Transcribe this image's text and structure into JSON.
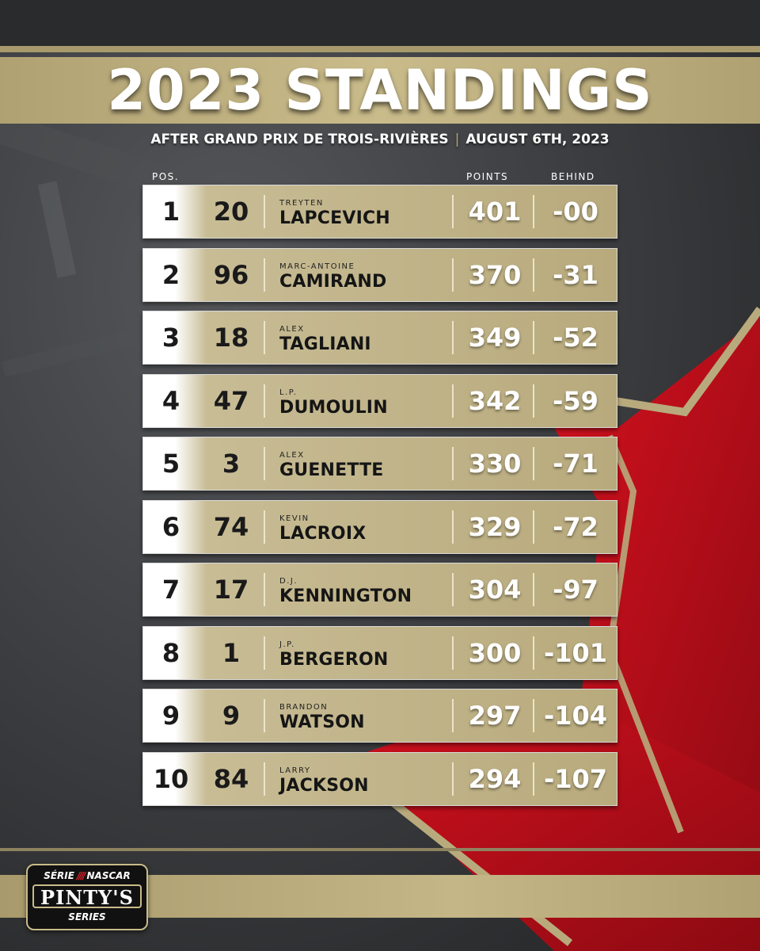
{
  "header": {
    "title": "2023 STANDINGS",
    "subtitle_event": "AFTER GRAND PRIX DE TROIS-RIVIÈRES",
    "subtitle_divider": "|",
    "subtitle_date": "AUGUST 6TH, 2023"
  },
  "columns": {
    "pos": "POS.",
    "points": "POINTS",
    "behind": "BEHIND"
  },
  "standings": [
    {
      "pos": "1",
      "number": "20",
      "first": "TREYTEN",
      "last": "LAPCEVICH",
      "points": "401",
      "behind": "-00"
    },
    {
      "pos": "2",
      "number": "96",
      "first": "MARC-ANTOINE",
      "last": "CAMIRAND",
      "points": "370",
      "behind": "-31"
    },
    {
      "pos": "3",
      "number": "18",
      "first": "ALEX",
      "last": "TAGLIANI",
      "points": "349",
      "behind": "-52"
    },
    {
      "pos": "4",
      "number": "47",
      "first": "L.P.",
      "last": "DUMOULIN",
      "points": "342",
      "behind": "-59"
    },
    {
      "pos": "5",
      "number": "3",
      "first": "ALEX",
      "last": "GUENETTE",
      "points": "330",
      "behind": "-71"
    },
    {
      "pos": "6",
      "number": "74",
      "first": "KEVIN",
      "last": "LACROIX",
      "points": "329",
      "behind": "-72"
    },
    {
      "pos": "7",
      "number": "17",
      "first": "D.J.",
      "last": "KENNINGTON",
      "points": "304",
      "behind": "-97"
    },
    {
      "pos": "8",
      "number": "1",
      "first": "J.P.",
      "last": "BERGERON",
      "points": "300",
      "behind": "-101"
    },
    {
      "pos": "9",
      "number": "9",
      "first": "BRANDON",
      "last": "WATSON",
      "points": "297",
      "behind": "-104"
    },
    {
      "pos": "10",
      "number": "84",
      "first": "LARRY",
      "last": "JACKSON",
      "points": "294",
      "behind": "-107"
    }
  ],
  "logo": {
    "top_left": "SÉRIE",
    "nascar_mark": "////",
    "top_right": "NASCAR",
    "main": "PINTY'S",
    "bottom": "SERIES"
  },
  "colors": {
    "gold": "#b8aa7c",
    "red": "#c0101c",
    "dark": "#3a3b3d"
  }
}
